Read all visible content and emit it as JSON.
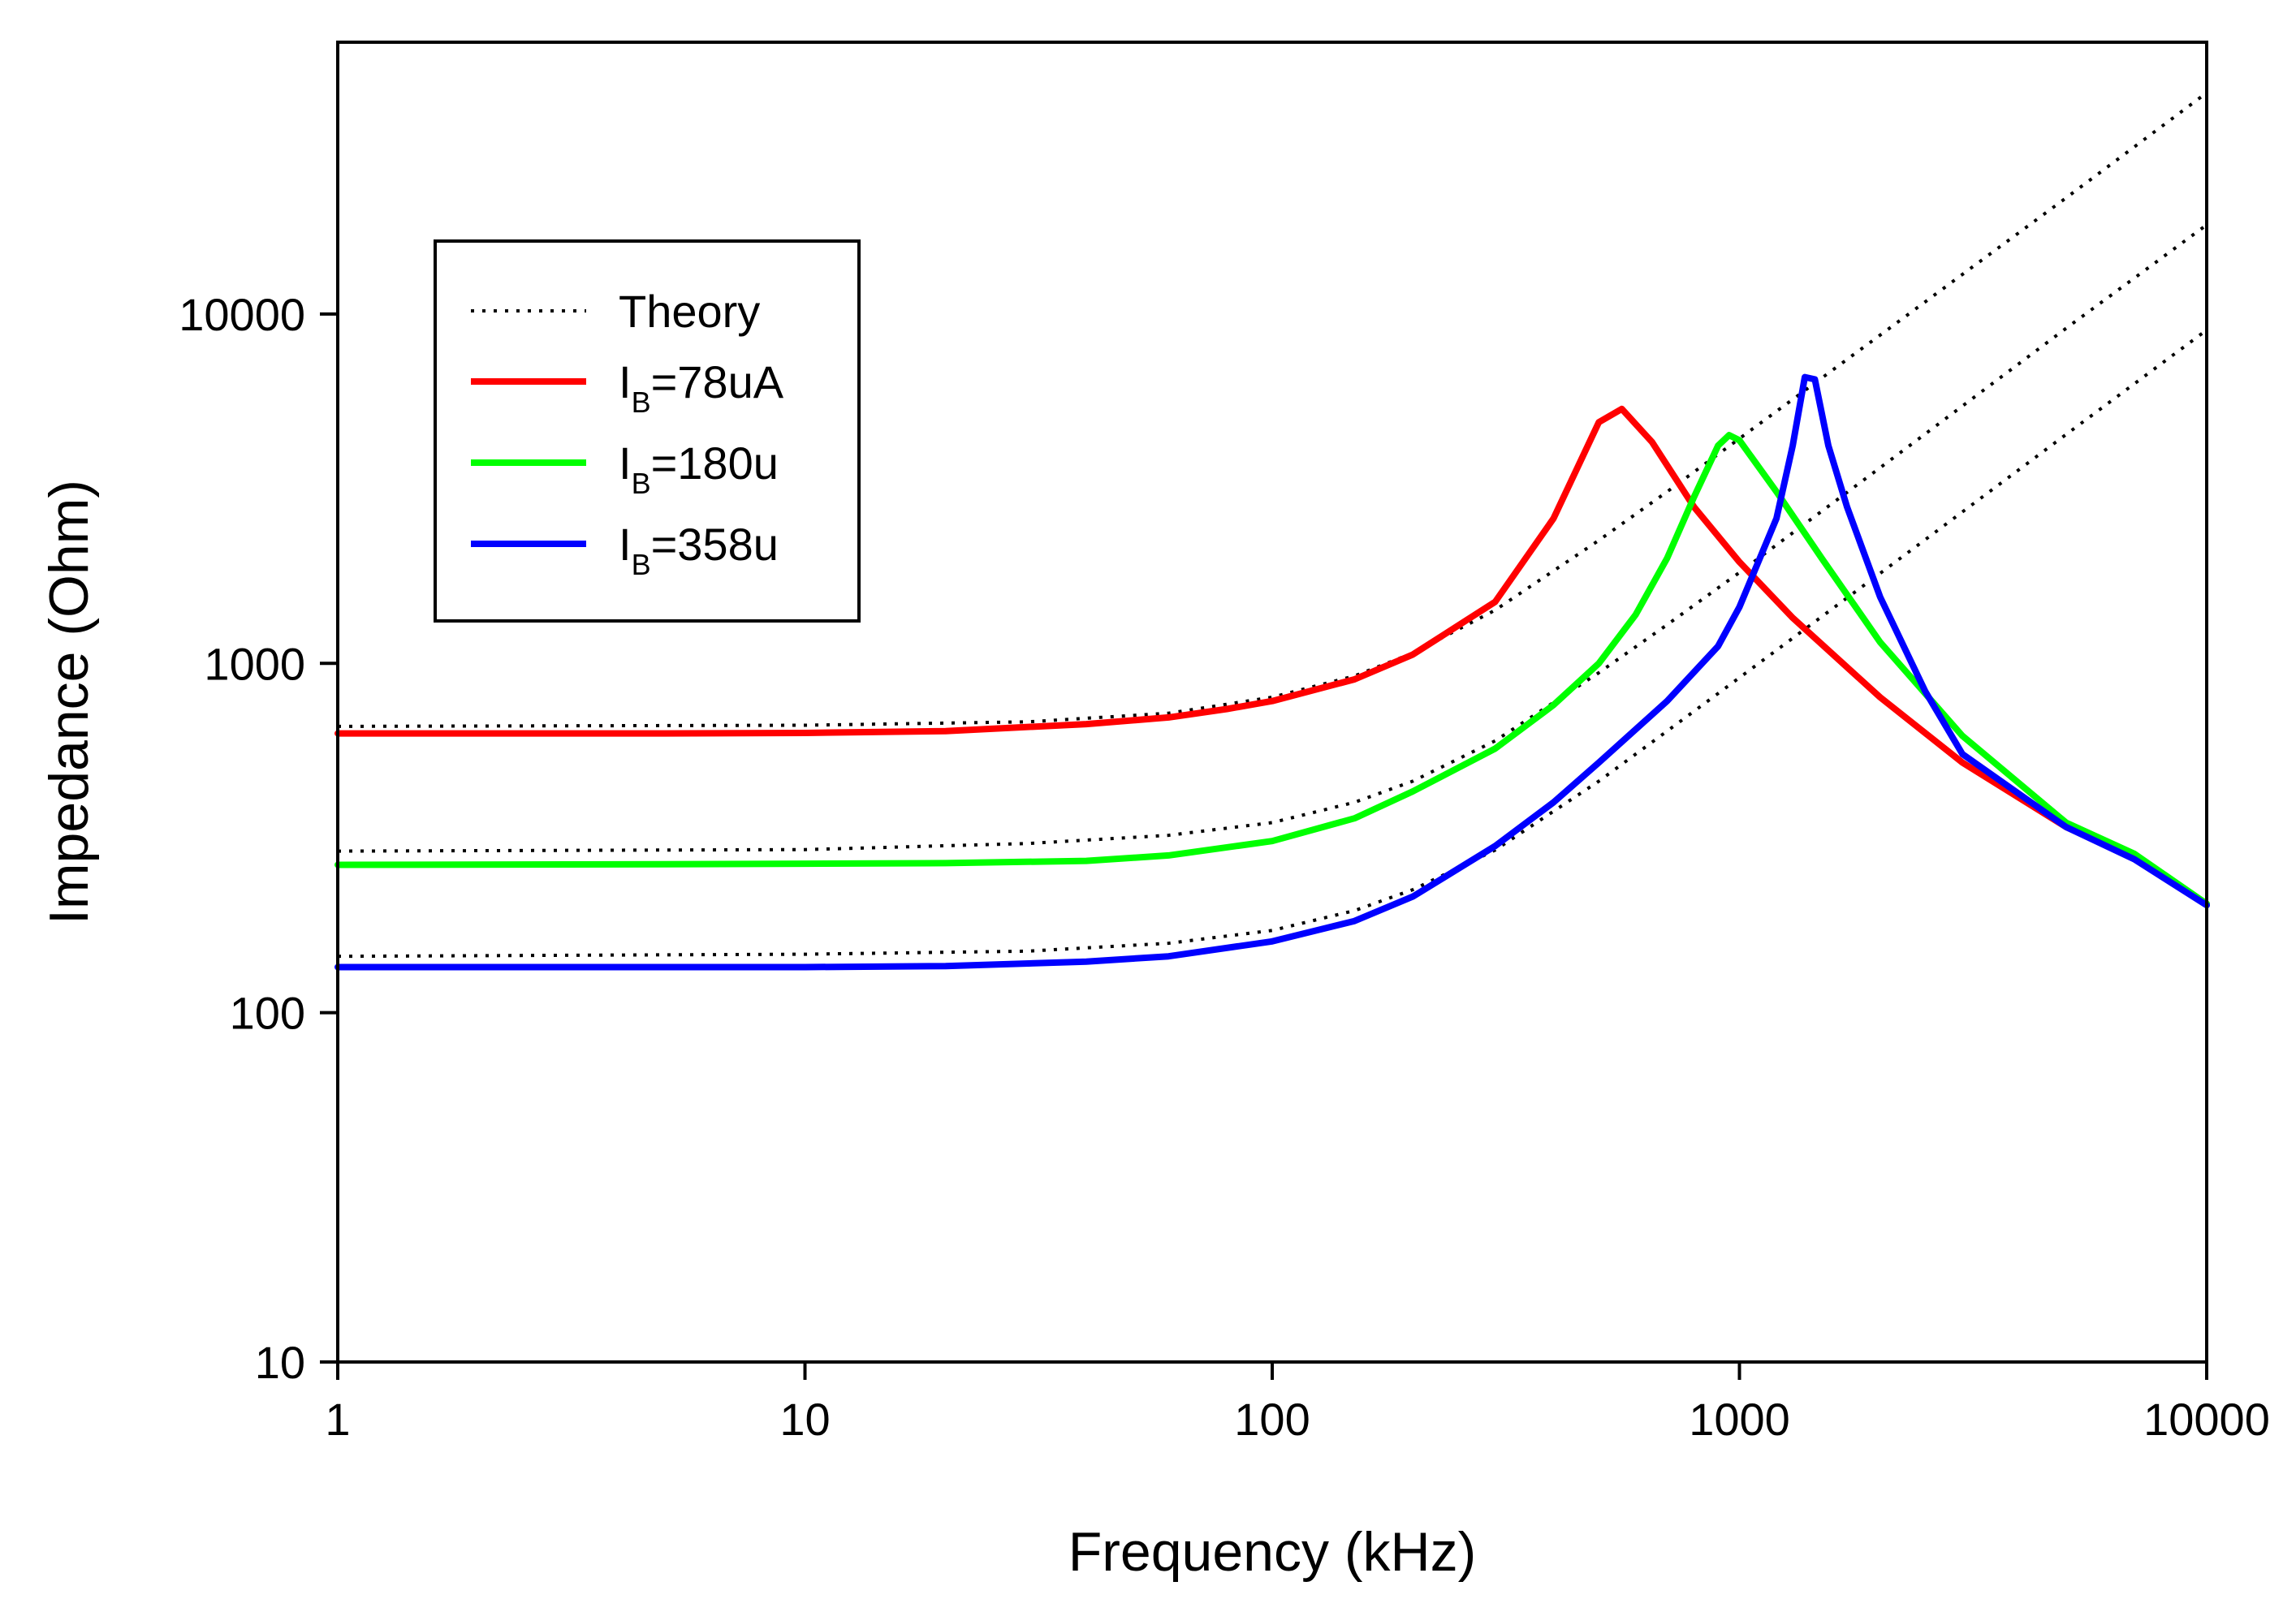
{
  "chart_data": {
    "type": "line",
    "title": "",
    "xlabel": "Frequency (kHz)",
    "ylabel": "Impedance (Ohm)",
    "xscale": "log",
    "yscale": "log",
    "xlim": [
      1,
      10000
    ],
    "ylim": [
      10,
      60000
    ],
    "xticks": [
      1,
      10,
      100,
      1000,
      10000
    ],
    "xtick_labels": [
      "1",
      "10",
      "100",
      "1000",
      "10000"
    ],
    "yticks": [
      10,
      100,
      1000,
      10000
    ],
    "ytick_labels": [
      "10",
      "100",
      "1000",
      "10000"
    ],
    "grid": false,
    "legend_position": "top-left",
    "legend": [
      {
        "label": "Theory",
        "base": "",
        "sub": "",
        "rest": "",
        "style": "dotted",
        "color": "#000000"
      },
      {
        "label": "IB=78uA",
        "base": "I",
        "sub": "B",
        "rest": "=78uA",
        "style": "solid",
        "color": "#ff0000"
      },
      {
        "label": "IB=180u",
        "base": "I",
        "sub": "B",
        "rest": "=180u",
        "style": "solid",
        "color": "#00ff00"
      },
      {
        "label": "IB=358u",
        "base": "I",
        "sub": "B",
        "rest": "=358u",
        "style": "solid",
        "color": "#0000ff"
      }
    ],
    "series": [
      {
        "name": "Theory (IB=78uA)",
        "style": "dotted",
        "color": "#000000",
        "x": [
          1,
          10,
          30,
          60,
          100,
          150,
          200,
          300,
          500,
          700,
          1000,
          2000,
          5000,
          10000
        ],
        "y": [
          660,
          665,
          680,
          720,
          800,
          920,
          1070,
          1420,
          2250,
          3100,
          4400,
          8700,
          21500,
          43000
        ]
      },
      {
        "name": "Theory (IB=180u)",
        "style": "dotted",
        "color": "#000000",
        "x": [
          1,
          10,
          30,
          60,
          100,
          150,
          200,
          300,
          500,
          700,
          1000,
          2000,
          5000,
          10000
        ],
        "y": [
          290,
          293,
          305,
          322,
          350,
          400,
          460,
          600,
          940,
          1290,
          1820,
          3630,
          9100,
          18000
        ]
      },
      {
        "name": "Theory (IB=358u)",
        "style": "dotted",
        "color": "#000000",
        "x": [
          1,
          10,
          30,
          60,
          100,
          150,
          200,
          300,
          500,
          700,
          1000,
          2000,
          5000,
          10000
        ],
        "y": [
          145,
          147,
          150,
          158,
          172,
          196,
          225,
          292,
          460,
          640,
          910,
          1810,
          4520,
          9000
        ]
      },
      {
        "name": "IB=78uA",
        "style": "solid",
        "color": "#ff0000",
        "x": [
          1,
          5,
          10,
          20,
          40,
          60,
          80,
          100,
          150,
          200,
          300,
          400,
          500,
          560,
          650,
          800,
          1000,
          1300,
          2000,
          3000,
          5000,
          7000,
          10000
        ],
        "y": [
          630,
          630,
          632,
          640,
          670,
          700,
          740,
          780,
          900,
          1060,
          1500,
          2600,
          4900,
          5350,
          4300,
          2800,
          1950,
          1350,
          800,
          520,
          340,
          280,
          205
        ]
      },
      {
        "name": "IB=180u",
        "style": "solid",
        "color": "#00ff00",
        "x": [
          1,
          5,
          10,
          20,
          40,
          60,
          100,
          150,
          200,
          300,
          400,
          500,
          600,
          700,
          800,
          900,
          950,
          1000,
          1200,
          1500,
          2000,
          3000,
          5000,
          7000,
          10000
        ],
        "y": [
          265,
          266,
          267,
          268,
          272,
          282,
          310,
          360,
          430,
          570,
          760,
          1000,
          1380,
          2000,
          3000,
          4200,
          4500,
          4350,
          3100,
          2000,
          1150,
          620,
          350,
          285,
          205
        ]
      },
      {
        "name": "IB=358u",
        "style": "solid",
        "color": "#0000ff",
        "x": [
          1,
          1.5,
          2,
          5,
          10,
          20,
          40,
          60,
          100,
          150,
          200,
          300,
          400,
          500,
          700,
          900,
          1000,
          1200,
          1300,
          1380,
          1450,
          1550,
          1700,
          2000,
          2500,
          3000,
          5000,
          7000,
          10000
        ],
        "y": [
          135,
          135,
          135,
          135,
          135,
          136,
          140,
          145,
          160,
          183,
          215,
          300,
          400,
          520,
          780,
          1120,
          1450,
          2600,
          4200,
          6600,
          6500,
          4200,
          2800,
          1550,
          830,
          550,
          340,
          275,
          203
        ]
      }
    ]
  }
}
